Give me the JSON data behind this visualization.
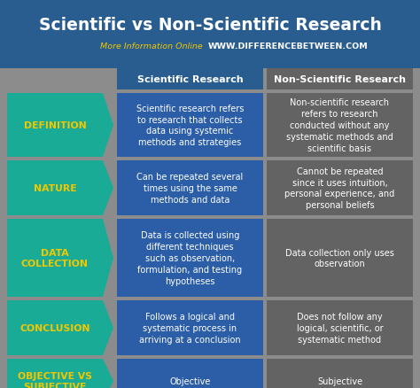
{
  "title": "Scientific vs Non-Scientific Research",
  "subtitle_normal": "More Information Online  ",
  "subtitle_bold": "WWW.DIFFERENCEBETWEEN.COM",
  "col1_header": "Scientific Research",
  "col2_header": "Non-Scientific Research",
  "bg_color": "#8c8c8c",
  "header_bg": "#2a5d8f",
  "col1_bg": "#2b5ea7",
  "col2_bg": "#636363",
  "arrow_bg": "#1aab96",
  "arrow_text_color": "#f0c800",
  "title_color": "#ffffff",
  "header_text_color": "#ffffff",
  "cell_text_color": "#ffffff",
  "subtitle_normal_color": "#f0c800",
  "subtitle_bold_color": "#ffffff",
  "rows": [
    {
      "label": "DEFINITION",
      "col1": "Scientific research refers\nto research that collects\ndata using systemic\nmethods and strategies",
      "col2": "Non-scientific research\nrefers to research\nconducted without any\nsystematic methods and\nscientific basis"
    },
    {
      "label": "NATURE",
      "col1": "Can be repeated several\ntimes using the same\nmethods and data",
      "col2": "Cannot be repeated\nsince it uses intuition,\npersonal experience, and\npersonal beliefs"
    },
    {
      "label": "DATA\nCOLLECTION",
      "col1": "Data is collected using\ndifferent techniques\nsuch as observation,\nformulation, and testing\nhypotheses",
      "col2": "Data collection only uses\nobservation"
    },
    {
      "label": "CONCLUSION",
      "col1": "Follows a logical and\nsystematic process in\narriving at a conclusion",
      "col2": "Does not follow any\nlogical, scientific, or\nsystematic method"
    },
    {
      "label": "OBJECTIVE VS\nSUBJECTIVE",
      "col1": "Objective",
      "col2": "Subjective"
    }
  ]
}
